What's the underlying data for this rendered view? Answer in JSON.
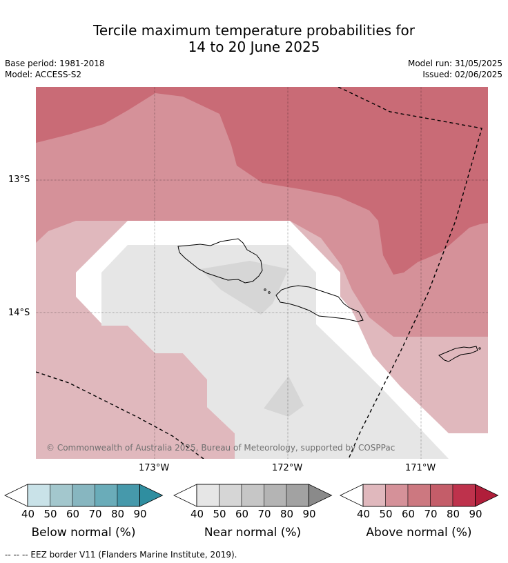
{
  "title": {
    "line1": "Tercile maximum temperature probabilities for",
    "line2": "14 to 20 June 2025"
  },
  "meta": {
    "base_period": "Base period: 1981-2018",
    "model": "Model: ACCESS-S2",
    "model_run": "Model run: 31/05/2025",
    "issued": "Issued: 02/06/2025"
  },
  "map": {
    "region": "Samoa and American Samoa",
    "lon_labels": [
      "173°W",
      "172°W",
      "171°W"
    ],
    "lat_labels": [
      "13°S",
      "14°S"
    ],
    "copyright": "© Commonwealth of Australia 2025, Bureau of Meteorology, supported by COSPPac",
    "eez_line_style": "dashed black"
  },
  "legends": [
    {
      "title": "Below normal (%)",
      "ticks": [
        "40",
        "50",
        "60",
        "70",
        "80",
        "90"
      ],
      "colors": [
        "#c9e2e8",
        "#a3c7cd",
        "#87b6c0",
        "#6aacb9",
        "#4699ab",
        "#2f8ea0"
      ]
    },
    {
      "title": "Near normal (%)",
      "ticks": [
        "40",
        "50",
        "60",
        "70",
        "80",
        "90"
      ],
      "colors": [
        "#e6e6e6",
        "#d6d6d6",
        "#c6c6c6",
        "#b4b4b4",
        "#a2a2a2",
        "#8a8a8a"
      ]
    },
    {
      "title": "Above normal (%)",
      "ticks": [
        "40",
        "50",
        "60",
        "70",
        "80",
        "90"
      ],
      "colors": [
        "#e0b8bd",
        "#d59199",
        "#cc7880",
        "#c45d69",
        "#be324c",
        "#b01e3a"
      ]
    }
  ],
  "footnote": "--  --  -- EEZ border V11 (Flanders Marine Institute, 2019)."
}
